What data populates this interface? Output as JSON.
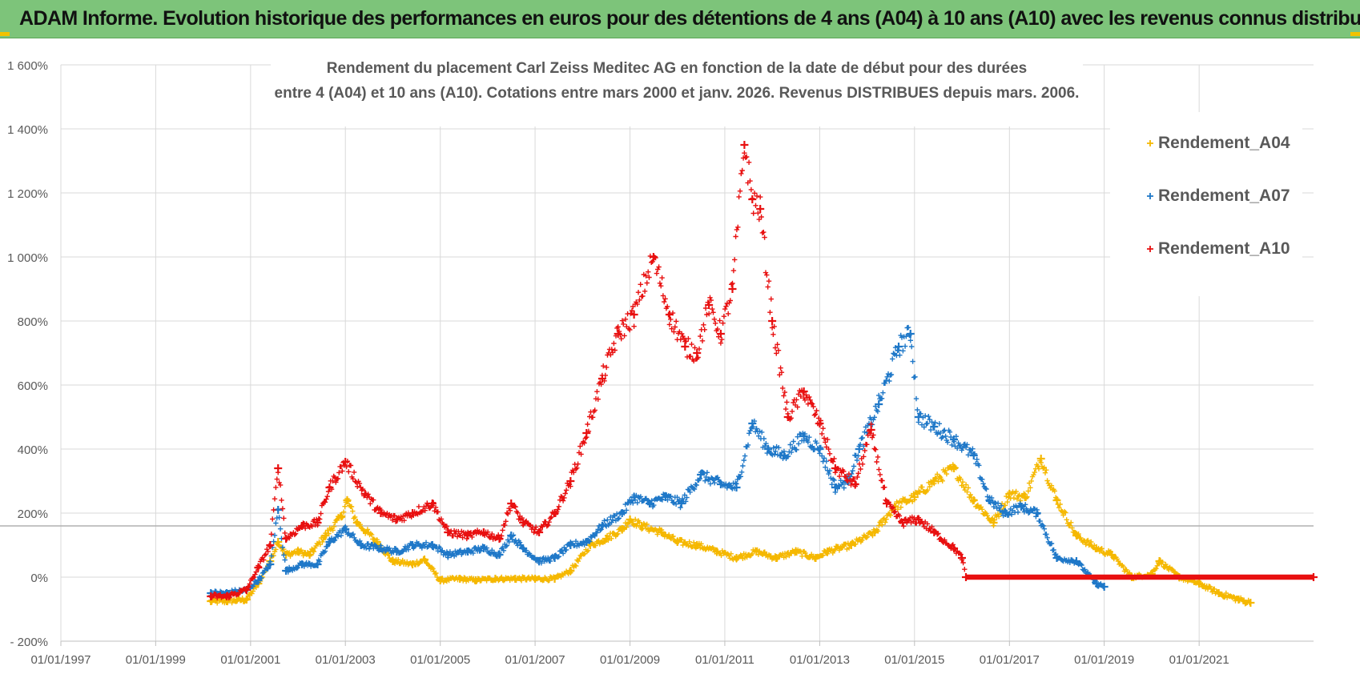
{
  "banner": {
    "title": "ADAM Informe. Evolution historique des performances en euros pour des détentions de 4 ans (A04) à 10 ans (A10) avec les revenus connus distribués"
  },
  "chart_data": {
    "type": "scatter",
    "title": "Rendement du placement Carl Zeiss Meditec AG en fonction de la date de début pour des durées",
    "subtitle": "entre 4 (A04) et 10 ans (A10).  Cotations entre mars 2000 et janv. 2026. Revenus DISTRIBUES depuis mars. 2006.",
    "xlabel": "",
    "ylabel": "",
    "x_unit": "date (start of holding period)",
    "xlim": [
      "1997-01-01",
      "2023-06-01"
    ],
    "ylim": [
      -200,
      1600
    ],
    "y_ticks": [
      -200,
      0,
      200,
      400,
      600,
      800,
      1000,
      1200,
      1400,
      1600
    ],
    "y_tick_labels": [
      "- 200%",
      "0%",
      "200%",
      "400%",
      "600%",
      "800%",
      "1 000%",
      "1 200%",
      "1 400%",
      "1 600%"
    ],
    "x_ticks": [
      "1997-01-01",
      "1999-01-01",
      "2001-01-01",
      "2003-01-01",
      "2005-01-01",
      "2007-01-01",
      "2009-01-01",
      "2011-01-01",
      "2013-01-01",
      "2015-01-01",
      "2017-01-01",
      "2019-01-01",
      "2021-01-01"
    ],
    "x_tick_labels": [
      "01/01/1997",
      "01/01/1999",
      "01/01/2001",
      "01/01/2003",
      "01/01/2005",
      "01/01/2007",
      "01/01/2009",
      "01/01/2011",
      "01/01/2013",
      "01/01/2015",
      "01/01/2017",
      "01/01/2019",
      "01/01/2021"
    ],
    "grid": true,
    "reference_line": {
      "y": 160,
      "color": "#b0b0b0"
    },
    "legend_position": "top-right",
    "series": [
      {
        "name": "Rendement_A04",
        "color": "#f5b800",
        "points": [
          [
            "2000-03-01",
            -75
          ],
          [
            "2000-07-01",
            -75
          ],
          [
            "2000-12-01",
            -70
          ],
          [
            "2001-03-01",
            -20
          ],
          [
            "2001-06-01",
            50
          ],
          [
            "2001-08-01",
            110
          ],
          [
            "2001-10-01",
            70
          ],
          [
            "2002-01-01",
            80
          ],
          [
            "2002-04-01",
            70
          ],
          [
            "2002-08-01",
            130
          ],
          [
            "2002-12-01",
            190
          ],
          [
            "2003-01-15",
            240
          ],
          [
            "2003-04-01",
            170
          ],
          [
            "2003-09-01",
            110
          ],
          [
            "2004-01-01",
            50
          ],
          [
            "2004-06-01",
            40
          ],
          [
            "2004-09-01",
            55
          ],
          [
            "2005-01-01",
            -10
          ],
          [
            "2005-06-01",
            -5
          ],
          [
            "2005-10-01",
            -10
          ],
          [
            "2006-03-01",
            -5
          ],
          [
            "2006-08-01",
            -5
          ],
          [
            "2007-01-01",
            -5
          ],
          [
            "2007-06-01",
            -5
          ],
          [
            "2007-10-01",
            20
          ],
          [
            "2008-03-01",
            100
          ],
          [
            "2008-07-01",
            120
          ],
          [
            "2008-11-01",
            150
          ],
          [
            "2009-01-01",
            180
          ],
          [
            "2009-04-01",
            160
          ],
          [
            "2009-09-01",
            140
          ],
          [
            "2010-01-01",
            110
          ],
          [
            "2010-06-01",
            100
          ],
          [
            "2010-11-01",
            80
          ],
          [
            "2011-04-01",
            60
          ],
          [
            "2011-09-01",
            80
          ],
          [
            "2012-02-01",
            60
          ],
          [
            "2012-07-01",
            80
          ],
          [
            "2012-12-01",
            60
          ],
          [
            "2013-03-01",
            80
          ],
          [
            "2013-09-01",
            100
          ],
          [
            "2014-03-01",
            140
          ],
          [
            "2014-08-01",
            220
          ],
          [
            "2015-01-01",
            250
          ],
          [
            "2015-06-01",
            300
          ],
          [
            "2015-11-01",
            340
          ],
          [
            "2016-04-01",
            240
          ],
          [
            "2016-09-01",
            170
          ],
          [
            "2017-01-01",
            260
          ],
          [
            "2017-05-01",
            250
          ],
          [
            "2017-09-01",
            370
          ],
          [
            "2018-01-01",
            240
          ],
          [
            "2018-06-01",
            130
          ],
          [
            "2018-11-01",
            90
          ],
          [
            "2019-03-01",
            70
          ],
          [
            "2019-08-01",
            0
          ],
          [
            "2020-01-01",
            10
          ],
          [
            "2020-03-01",
            50
          ],
          [
            "2020-08-01",
            0
          ],
          [
            "2021-01-01",
            -20
          ],
          [
            "2021-06-01",
            -50
          ],
          [
            "2021-11-01",
            -70
          ],
          [
            "2022-02-01",
            -80
          ]
        ]
      },
      {
        "name": "Rendement_A07",
        "color": "#1f78c8",
        "points": [
          [
            "2000-03-01",
            -50
          ],
          [
            "2000-07-01",
            -50
          ],
          [
            "2000-12-01",
            -40
          ],
          [
            "2001-03-01",
            -10
          ],
          [
            "2001-06-01",
            40
          ],
          [
            "2001-08-01",
            210
          ],
          [
            "2001-10-01",
            20
          ],
          [
            "2002-02-01",
            40
          ],
          [
            "2002-06-01",
            40
          ],
          [
            "2002-09-01",
            110
          ],
          [
            "2003-01-01",
            150
          ],
          [
            "2003-05-01",
            100
          ],
          [
            "2003-10-01",
            90
          ],
          [
            "2004-02-01",
            80
          ],
          [
            "2004-06-01",
            100
          ],
          [
            "2004-11-01",
            100
          ],
          [
            "2005-03-01",
            70
          ],
          [
            "2005-08-01",
            80
          ],
          [
            "2005-12-01",
            90
          ],
          [
            "2006-04-01",
            70
          ],
          [
            "2006-07-01",
            130
          ],
          [
            "2006-10-01",
            90
          ],
          [
            "2007-02-01",
            50
          ],
          [
            "2007-06-01",
            60
          ],
          [
            "2007-10-01",
            100
          ],
          [
            "2008-02-01",
            110
          ],
          [
            "2008-06-01",
            160
          ],
          [
            "2008-11-01",
            200
          ],
          [
            "2009-02-01",
            250
          ],
          [
            "2009-06-01",
            230
          ],
          [
            "2009-10-01",
            250
          ],
          [
            "2010-02-01",
            230
          ],
          [
            "2010-07-01",
            320
          ],
          [
            "2010-12-01",
            290
          ],
          [
            "2011-04-01",
            280
          ],
          [
            "2011-08-01",
            480
          ],
          [
            "2011-12-01",
            400
          ],
          [
            "2012-04-01",
            380
          ],
          [
            "2012-09-01",
            440
          ],
          [
            "2013-01-01",
            400
          ],
          [
            "2013-05-01",
            280
          ],
          [
            "2013-08-01",
            300
          ],
          [
            "2013-11-01",
            400
          ],
          [
            "2014-04-01",
            540
          ],
          [
            "2014-09-01",
            720
          ],
          [
            "2014-12-01",
            760
          ],
          [
            "2015-02-01",
            500
          ],
          [
            "2015-06-01",
            470
          ],
          [
            "2015-11-01",
            430
          ],
          [
            "2016-04-01",
            380
          ],
          [
            "2016-08-01",
            240
          ],
          [
            "2016-12-01",
            200
          ],
          [
            "2017-04-01",
            220
          ],
          [
            "2017-08-01",
            200
          ],
          [
            "2018-01-01",
            60
          ],
          [
            "2018-06-01",
            50
          ],
          [
            "2018-11-01",
            -20
          ],
          [
            "2019-01-01",
            -30
          ]
        ]
      },
      {
        "name": "Rendement_A10",
        "color": "#e81010",
        "points": [
          [
            "2000-03-01",
            -60
          ],
          [
            "2000-07-01",
            -60
          ],
          [
            "2000-12-01",
            -40
          ],
          [
            "2001-03-01",
            30
          ],
          [
            "2001-06-01",
            100
          ],
          [
            "2001-08-01",
            340
          ],
          [
            "2001-10-01",
            120
          ],
          [
            "2002-02-01",
            160
          ],
          [
            "2002-06-01",
            170
          ],
          [
            "2002-09-01",
            280
          ],
          [
            "2003-01-01",
            360
          ],
          [
            "2003-06-01",
            260
          ],
          [
            "2003-10-01",
            200
          ],
          [
            "2004-02-01",
            180
          ],
          [
            "2004-06-01",
            200
          ],
          [
            "2004-11-01",
            230
          ],
          [
            "2005-03-01",
            140
          ],
          [
            "2005-08-01",
            130
          ],
          [
            "2005-12-01",
            140
          ],
          [
            "2006-04-01",
            120
          ],
          [
            "2006-07-01",
            230
          ],
          [
            "2006-10-01",
            170
          ],
          [
            "2007-02-01",
            140
          ],
          [
            "2007-06-01",
            200
          ],
          [
            "2007-10-01",
            300
          ],
          [
            "2008-02-01",
            450
          ],
          [
            "2008-06-01",
            620
          ],
          [
            "2008-10-01",
            760
          ],
          [
            "2009-02-01",
            820
          ],
          [
            "2009-07-01",
            1000
          ],
          [
            "2009-11-01",
            820
          ],
          [
            "2010-03-01",
            720
          ],
          [
            "2010-06-01",
            700
          ],
          [
            "2010-09-01",
            850
          ],
          [
            "2010-12-01",
            760
          ],
          [
            "2011-03-01",
            900
          ],
          [
            "2011-06-01",
            1350
          ],
          [
            "2011-08-01",
            1180
          ],
          [
            "2011-10-01",
            1150
          ],
          [
            "2012-01-01",
            800
          ],
          [
            "2012-05-01",
            500
          ],
          [
            "2012-09-01",
            580
          ],
          [
            "2013-01-01",
            480
          ],
          [
            "2013-05-01",
            340
          ],
          [
            "2013-10-01",
            290
          ],
          [
            "2014-02-01",
            460
          ],
          [
            "2014-06-01",
            230
          ],
          [
            "2014-10-01",
            170
          ],
          [
            "2015-02-01",
            180
          ],
          [
            "2015-06-01",
            140
          ],
          [
            "2015-11-01",
            90
          ],
          [
            "2016-01-01",
            60
          ],
          [
            "2016-02-01",
            0
          ],
          [
            "2023-06-01",
            0
          ]
        ]
      }
    ]
  }
}
